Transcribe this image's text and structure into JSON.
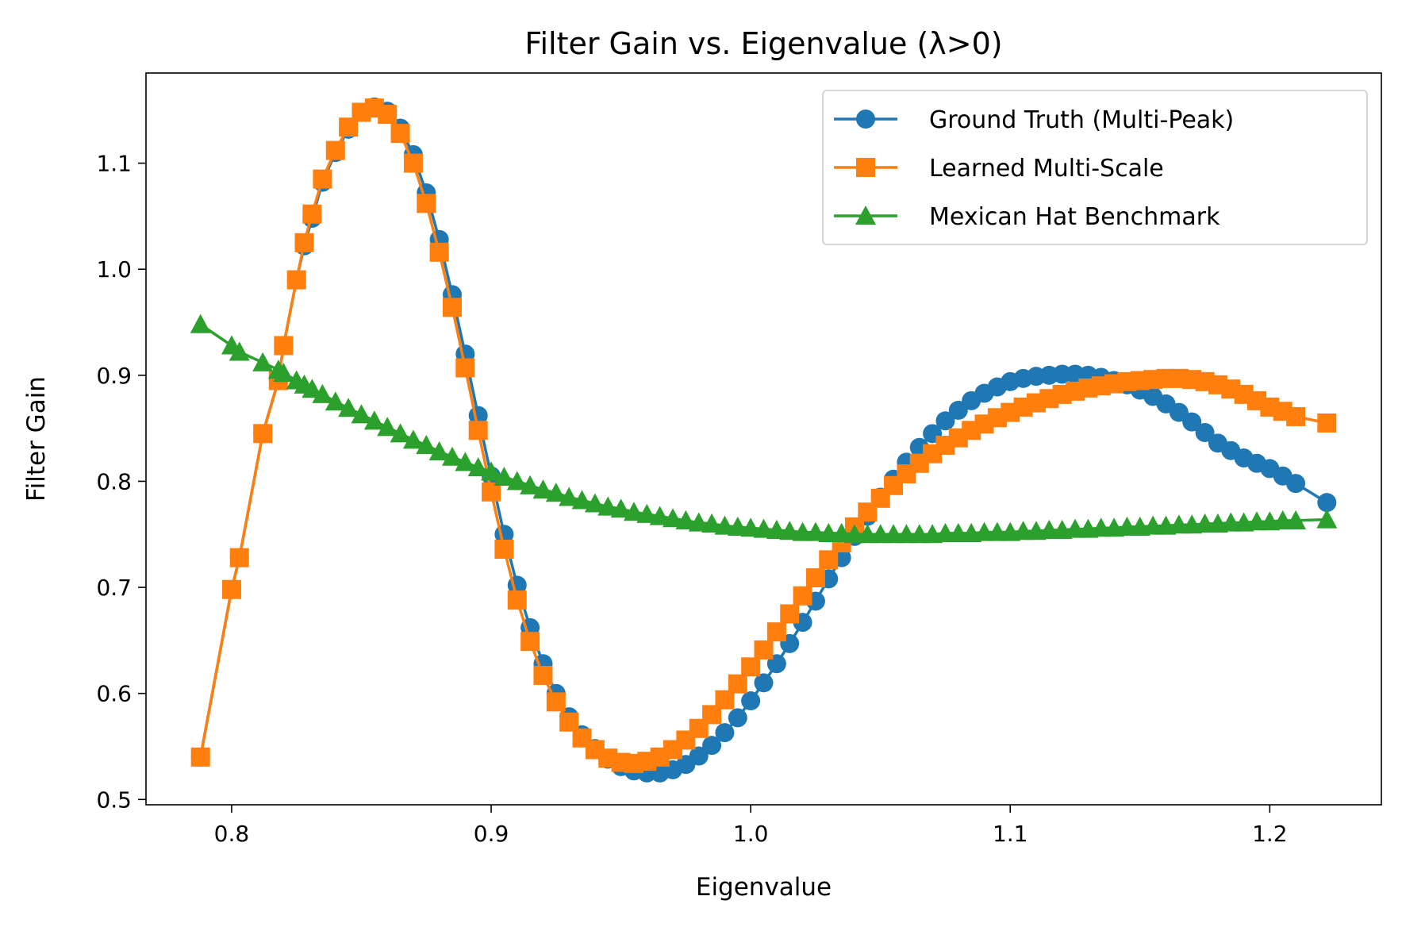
{
  "chart_data": {
    "type": "line",
    "title": "Filter Gain vs. Eigenvalue (λ>0)",
    "xlabel": "Eigenvalue",
    "ylabel": "Filter Gain",
    "xlim": [
      0.767,
      1.243
    ],
    "ylim": [
      0.495,
      1.185
    ],
    "xticks": [
      0.8,
      0.9,
      1.0,
      1.1,
      1.2
    ],
    "xtick_labels": [
      "0.8",
      "0.9",
      "1.0",
      "1.1",
      "1.2"
    ],
    "yticks": [
      0.5,
      0.6,
      0.7,
      0.8,
      0.9,
      1.0,
      1.1
    ],
    "ytick_labels": [
      "0.5",
      "0.6",
      "0.7",
      "0.8",
      "0.9",
      "1.0",
      "1.1"
    ],
    "grid": false,
    "legend_position": "upper-right",
    "x": [
      0.788,
      0.8,
      0.803,
      0.812,
      0.818,
      0.82,
      0.825,
      0.828,
      0.831,
      0.835,
      0.84,
      0.845,
      0.85,
      0.855,
      0.86,
      0.865,
      0.87,
      0.875,
      0.88,
      0.885,
      0.89,
      0.895,
      0.9,
      0.905,
      0.91,
      0.915,
      0.92,
      0.925,
      0.93,
      0.935,
      0.94,
      0.945,
      0.95,
      0.955,
      0.96,
      0.965,
      0.97,
      0.975,
      0.98,
      0.985,
      0.99,
      0.995,
      1.0,
      1.005,
      1.01,
      1.015,
      1.02,
      1.025,
      1.03,
      1.035,
      1.04,
      1.045,
      1.05,
      1.055,
      1.06,
      1.065,
      1.07,
      1.075,
      1.08,
      1.085,
      1.09,
      1.095,
      1.1,
      1.105,
      1.11,
      1.115,
      1.12,
      1.125,
      1.13,
      1.135,
      1.14,
      1.145,
      1.15,
      1.155,
      1.16,
      1.165,
      1.17,
      1.175,
      1.18,
      1.185,
      1.19,
      1.195,
      1.2,
      1.205,
      1.21,
      1.222
    ],
    "series": [
      {
        "name": "Ground Truth (Multi-Peak)",
        "color": "#1f77b4",
        "marker": "circle",
        "values": [
          0.54,
          0.698,
          0.728,
          0.845,
          0.895,
          0.928,
          0.99,
          1.022,
          1.048,
          1.082,
          1.11,
          1.132,
          1.148,
          1.153,
          1.149,
          1.133,
          1.108,
          1.072,
          1.028,
          0.976,
          0.92,
          0.862,
          0.805,
          0.75,
          0.702,
          0.662,
          0.628,
          0.6,
          0.578,
          0.561,
          0.548,
          0.538,
          0.531,
          0.527,
          0.525,
          0.525,
          0.528,
          0.533,
          0.541,
          0.551,
          0.563,
          0.577,
          0.593,
          0.61,
          0.628,
          0.647,
          0.667,
          0.687,
          0.708,
          0.728,
          0.748,
          0.767,
          0.785,
          0.802,
          0.818,
          0.832,
          0.845,
          0.857,
          0.867,
          0.876,
          0.883,
          0.889,
          0.894,
          0.897,
          0.899,
          0.9,
          0.901,
          0.901,
          0.9,
          0.898,
          0.895,
          0.891,
          0.886,
          0.88,
          0.873,
          0.865,
          0.856,
          0.846,
          0.836,
          0.829,
          0.822,
          0.817,
          0.812,
          0.805,
          0.798,
          0.78
        ]
      },
      {
        "name": "Learned Multi-Scale",
        "color": "#ff7f0e",
        "marker": "square",
        "values": [
          0.54,
          0.698,
          0.728,
          0.845,
          0.895,
          0.928,
          0.99,
          1.025,
          1.052,
          1.085,
          1.112,
          1.134,
          1.148,
          1.152,
          1.146,
          1.128,
          1.1,
          1.062,
          1.016,
          0.964,
          0.907,
          0.848,
          0.79,
          0.736,
          0.688,
          0.649,
          0.617,
          0.592,
          0.573,
          0.558,
          0.547,
          0.539,
          0.535,
          0.534,
          0.536,
          0.54,
          0.547,
          0.556,
          0.567,
          0.58,
          0.594,
          0.609,
          0.625,
          0.641,
          0.658,
          0.675,
          0.692,
          0.709,
          0.726,
          0.742,
          0.757,
          0.771,
          0.784,
          0.796,
          0.807,
          0.817,
          0.826,
          0.834,
          0.841,
          0.848,
          0.854,
          0.86,
          0.865,
          0.87,
          0.874,
          0.878,
          0.882,
          0.885,
          0.888,
          0.89,
          0.892,
          0.894,
          0.895,
          0.896,
          0.897,
          0.897,
          0.896,
          0.894,
          0.891,
          0.887,
          0.882,
          0.876,
          0.87,
          0.866,
          0.861,
          0.855
        ]
      },
      {
        "name": "Mexican Hat Benchmark",
        "color": "#2ca02c",
        "marker": "triangle",
        "values": [
          0.948,
          0.928,
          0.922,
          0.912,
          0.905,
          0.902,
          0.895,
          0.891,
          0.887,
          0.882,
          0.875,
          0.869,
          0.863,
          0.857,
          0.851,
          0.845,
          0.839,
          0.834,
          0.828,
          0.823,
          0.818,
          0.813,
          0.809,
          0.804,
          0.8,
          0.796,
          0.792,
          0.789,
          0.785,
          0.782,
          0.779,
          0.776,
          0.774,
          0.771,
          0.769,
          0.767,
          0.765,
          0.763,
          0.761,
          0.76,
          0.758,
          0.757,
          0.756,
          0.755,
          0.754,
          0.753,
          0.752,
          0.752,
          0.751,
          0.751,
          0.75,
          0.75,
          0.75,
          0.75,
          0.75,
          0.75,
          0.75,
          0.751,
          0.751,
          0.751,
          0.752,
          0.752,
          0.752,
          0.753,
          0.753,
          0.754,
          0.754,
          0.755,
          0.755,
          0.756,
          0.756,
          0.757,
          0.757,
          0.758,
          0.758,
          0.759,
          0.759,
          0.76,
          0.76,
          0.761,
          0.761,
          0.762,
          0.762,
          0.763,
          0.763,
          0.764
        ]
      }
    ]
  }
}
